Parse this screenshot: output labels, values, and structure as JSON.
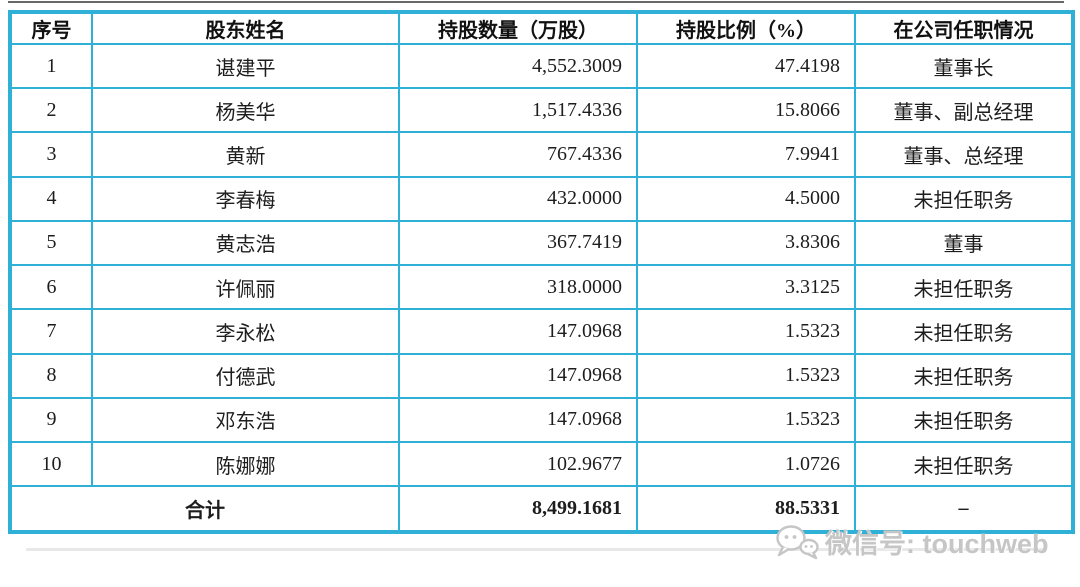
{
  "table": {
    "columns": [
      {
        "key": "index",
        "label": "序号"
      },
      {
        "key": "name",
        "label": "股东姓名"
      },
      {
        "key": "shares",
        "label": "持股数量（万股）"
      },
      {
        "key": "ratio",
        "label": "持股比例（%）"
      },
      {
        "key": "position",
        "label": "在公司任职情况"
      }
    ],
    "rows": [
      [
        "1",
        "谌建平",
        "4,552.3009",
        "47.4198",
        "董事长"
      ],
      [
        "2",
        "杨美华",
        "1,517.4336",
        "15.8066",
        "董事、副总经理"
      ],
      [
        "3",
        "黄新",
        "767.4336",
        "7.9941",
        "董事、总经理"
      ],
      [
        "4",
        "李春梅",
        "432.0000",
        "4.5000",
        "未担任职务"
      ],
      [
        "5",
        "黄志浩",
        "367.7419",
        "3.8306",
        "董事"
      ],
      [
        "6",
        "许佩丽",
        "318.0000",
        "3.3125",
        "未担任职务"
      ],
      [
        "7",
        "李永松",
        "147.0968",
        "1.5323",
        "未担任职务"
      ],
      [
        "8",
        "付德武",
        "147.0968",
        "1.5323",
        "未担任职务"
      ],
      [
        "9",
        "邓东浩",
        "147.0968",
        "1.5323",
        "未担任职务"
      ],
      [
        "10",
        "陈娜娜",
        "102.9677",
        "1.0726",
        "未担任职务"
      ]
    ],
    "total": {
      "label": "合计",
      "shares": "8,499.1681",
      "ratio": "88.5331",
      "position": "–"
    }
  },
  "watermark": {
    "icon": "wechat-icon",
    "text": "微信号: touchweb"
  },
  "colors": {
    "table_border": "#2fb0d6",
    "text": "#1d1d1d",
    "watermark": "#c6c6c6",
    "top_line": "#4e4e4e"
  }
}
